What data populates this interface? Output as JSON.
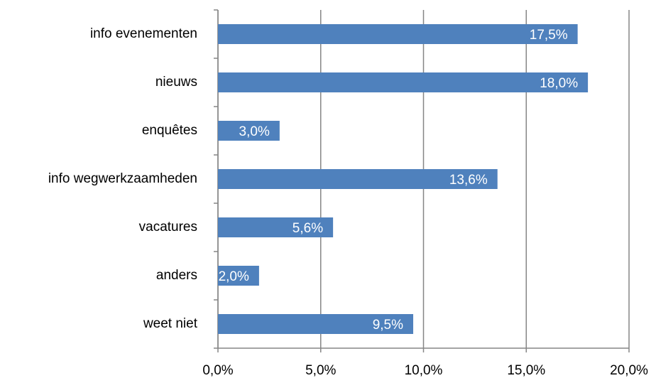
{
  "chart_data": {
    "type": "bar",
    "orientation": "horizontal",
    "categories": [
      "info evenementen",
      "nieuws",
      "enquêtes",
      "info wegwerkzaamheden",
      "vacatures",
      "anders",
      "weet niet"
    ],
    "values": [
      17.5,
      18.0,
      3.0,
      13.6,
      5.6,
      2.0,
      9.5
    ],
    "value_labels": [
      "17,5%",
      "18,0%",
      "3,0%",
      "13,6%",
      "5,6%",
      "2,0%",
      "9,5%"
    ],
    "color": "#4f81bd",
    "xlim": [
      0,
      20
    ],
    "xticks": [
      {
        "value": 0,
        "label": "0,0%"
      },
      {
        "value": 5,
        "label": "5,0%"
      },
      {
        "value": 10,
        "label": "10,0%"
      },
      {
        "value": 15,
        "label": "15,0%"
      },
      {
        "value": 20,
        "label": "20,0%"
      }
    ],
    "grid": true
  }
}
